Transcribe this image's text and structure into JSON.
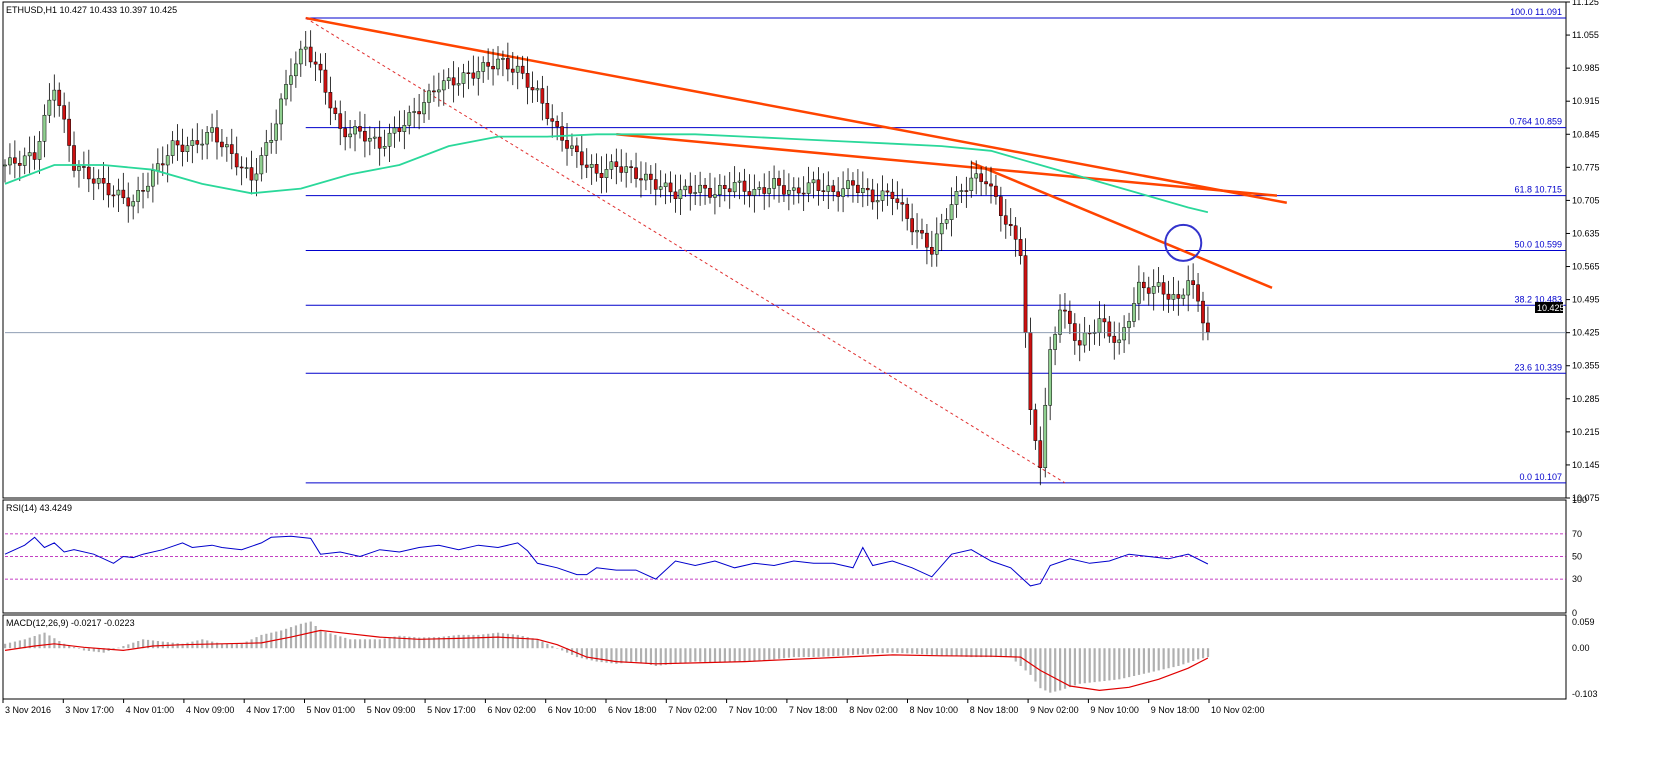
{
  "symbol_header": "ETHUSD,H1  10.427 10.433 10.397 10.425",
  "current_price": "10.425",
  "colors": {
    "bull": "#8fcf8f",
    "bear": "#cc1111",
    "ma": "#2ad89a",
    "trendline": "#ff4400",
    "fib": "#0000cc",
    "rsi": "#0000cc",
    "macd_signal": "#e00000",
    "macd_hist": "#b0b0b0",
    "highlight": "#3333cc"
  },
  "chart_data": {
    "type": "candlestick",
    "price_axis": {
      "range": [
        10.075,
        11.125
      ],
      "ticks": [
        "11.125",
        "11.055",
        "10.985",
        "10.915",
        "10.845",
        "10.775",
        "10.705",
        "10.635",
        "10.565",
        "10.495",
        "10.425",
        "10.355",
        "10.285",
        "10.215",
        "10.145",
        "10.075"
      ]
    },
    "time_axis": {
      "labels": [
        "3 Nov 2016",
        "3 Nov 17:00",
        "4 Nov 01:00",
        "4 Nov 09:00",
        "4 Nov 17:00",
        "5 Nov 01:00",
        "5 Nov 09:00",
        "5 Nov 17:00",
        "6 Nov 02:00",
        "6 Nov 10:00",
        "6 Nov 18:00",
        "7 Nov 02:00",
        "7 Nov 10:00",
        "7 Nov 18:00",
        "8 Nov 02:00",
        "8 Nov 10:00",
        "8 Nov 18:00",
        "9 Nov 02:00",
        "9 Nov 10:00",
        "9 Nov 18:00",
        "10 Nov 02:00"
      ]
    },
    "fibonacci": [
      {
        "label": "100.0",
        "value": 11.091
      },
      {
        "label": "0.764",
        "value": 10.859
      },
      {
        "label": "61.8",
        "value": 10.715
      },
      {
        "label": "50.0",
        "value": 10.599
      },
      {
        "label": "38.2",
        "value": 10.483
      },
      {
        "label": "23.6",
        "value": 10.339
      },
      {
        "label": "0.0",
        "value": 10.107
      }
    ],
    "close_path": [
      [
        0,
        10.78
      ],
      [
        6,
        10.8
      ],
      [
        10,
        10.95
      ],
      [
        14,
        10.78
      ],
      [
        18,
        10.75
      ],
      [
        22,
        10.72
      ],
      [
        26,
        10.7
      ],
      [
        30,
        10.76
      ],
      [
        34,
        10.82
      ],
      [
        38,
        10.82
      ],
      [
        42,
        10.85
      ],
      [
        46,
        10.8
      ],
      [
        50,
        10.75
      ],
      [
        54,
        10.84
      ],
      [
        58,
        10.98
      ],
      [
        61,
        11.03
      ],
      [
        64,
        10.97
      ],
      [
        68,
        10.85
      ],
      [
        72,
        10.85
      ],
      [
        76,
        10.82
      ],
      [
        80,
        10.86
      ],
      [
        84,
        10.9
      ],
      [
        88,
        10.95
      ],
      [
        92,
        10.96
      ],
      [
        96,
        10.98
      ],
      [
        100,
        11.0
      ],
      [
        104,
        10.98
      ],
      [
        108,
        10.93
      ],
      [
        112,
        10.85
      ],
      [
        116,
        10.8
      ],
      [
        120,
        10.76
      ],
      [
        124,
        10.78
      ],
      [
        128,
        10.76
      ],
      [
        132,
        10.74
      ],
      [
        136,
        10.72
      ],
      [
        140,
        10.73
      ],
      [
        144,
        10.72
      ],
      [
        148,
        10.74
      ],
      [
        152,
        10.72
      ],
      [
        156,
        10.74
      ],
      [
        160,
        10.72
      ],
      [
        164,
        10.74
      ],
      [
        168,
        10.72
      ],
      [
        172,
        10.74
      ],
      [
        176,
        10.71
      ],
      [
        180,
        10.72
      ],
      [
        184,
        10.65
      ],
      [
        188,
        10.6
      ],
      [
        192,
        10.7
      ],
      [
        196,
        10.75
      ],
      [
        199,
        10.75
      ],
      [
        203,
        10.66
      ],
      [
        206,
        10.6
      ],
      [
        208,
        10.25
      ],
      [
        210,
        10.15
      ],
      [
        212,
        10.38
      ],
      [
        214,
        10.48
      ],
      [
        218,
        10.4
      ],
      [
        222,
        10.45
      ],
      [
        226,
        10.4
      ],
      [
        230,
        10.52
      ],
      [
        234,
        10.52
      ],
      [
        238,
        10.49
      ],
      [
        240,
        10.54
      ],
      [
        242,
        10.49
      ],
      [
        244,
        10.425
      ]
    ],
    "candles": {
      "count": 245,
      "extra_bars": 22
    },
    "moving_average": [
      [
        0,
        10.74
      ],
      [
        10,
        10.78
      ],
      [
        20,
        10.78
      ],
      [
        30,
        10.77
      ],
      [
        40,
        10.74
      ],
      [
        50,
        10.72
      ],
      [
        60,
        10.73
      ],
      [
        70,
        10.76
      ],
      [
        80,
        10.78
      ],
      [
        90,
        10.82
      ],
      [
        100,
        10.84
      ],
      [
        110,
        10.84
      ],
      [
        120,
        10.845
      ],
      [
        130,
        10.845
      ],
      [
        140,
        10.845
      ],
      [
        150,
        10.84
      ],
      [
        160,
        10.835
      ],
      [
        170,
        10.83
      ],
      [
        180,
        10.825
      ],
      [
        190,
        10.82
      ],
      [
        200,
        10.81
      ],
      [
        210,
        10.78
      ],
      [
        220,
        10.75
      ],
      [
        230,
        10.72
      ],
      [
        240,
        10.69
      ],
      [
        244,
        10.68
      ]
    ],
    "trendlines": [
      {
        "from": [
          61,
          11.091
        ],
        "to": [
          260,
          10.7
        ]
      },
      {
        "from": [
          124,
          10.845
        ],
        "to": [
          258,
          10.715
        ]
      },
      {
        "from": [
          196,
          10.785
        ],
        "to": [
          257,
          10.52
        ]
      },
      {
        "from": [
          61,
          11.091
        ],
        "to": [
          215,
          10.107
        ],
        "style": "dashed"
      }
    ],
    "highlight_circle": [
      239,
      10.615
    ],
    "rsi": {
      "label": "RSI(14) 43.4249",
      "levels": [
        70,
        50,
        30
      ],
      "axis_ticks": [
        "100",
        "70",
        "50",
        "30",
        "0"
      ],
      "series": [
        [
          0,
          52
        ],
        [
          4,
          60
        ],
        [
          6,
          67
        ],
        [
          8,
          58
        ],
        [
          10,
          62
        ],
        [
          12,
          54
        ],
        [
          14,
          56
        ],
        [
          18,
          52
        ],
        [
          22,
          44
        ],
        [
          24,
          50
        ],
        [
          26,
          49
        ],
        [
          28,
          52
        ],
        [
          32,
          56
        ],
        [
          34,
          59
        ],
        [
          36,
          62
        ],
        [
          38,
          58
        ],
        [
          42,
          60
        ],
        [
          44,
          58
        ],
        [
          48,
          56
        ],
        [
          52,
          62
        ],
        [
          54,
          67
        ],
        [
          58,
          68
        ],
        [
          62,
          66
        ],
        [
          64,
          52
        ],
        [
          68,
          54
        ],
        [
          72,
          50
        ],
        [
          76,
          56
        ],
        [
          80,
          54
        ],
        [
          84,
          58
        ],
        [
          88,
          60
        ],
        [
          92,
          56
        ],
        [
          96,
          60
        ],
        [
          100,
          58
        ],
        [
          104,
          62
        ],
        [
          106,
          55
        ],
        [
          108,
          44
        ],
        [
          112,
          40
        ],
        [
          116,
          34
        ],
        [
          118,
          34
        ],
        [
          120,
          40
        ],
        [
          124,
          38
        ],
        [
          128,
          38
        ],
        [
          132,
          30
        ],
        [
          136,
          46
        ],
        [
          140,
          42
        ],
        [
          144,
          46
        ],
        [
          148,
          40
        ],
        [
          152,
          44
        ],
        [
          156,
          42
        ],
        [
          160,
          46
        ],
        [
          164,
          44
        ],
        [
          168,
          44
        ],
        [
          172,
          40
        ],
        [
          174,
          58
        ],
        [
          176,
          42
        ],
        [
          180,
          46
        ],
        [
          184,
          40
        ],
        [
          188,
          32
        ],
        [
          192,
          52
        ],
        [
          196,
          56
        ],
        [
          200,
          46
        ],
        [
          204,
          40
        ],
        [
          208,
          24
        ],
        [
          210,
          26
        ],
        [
          212,
          42
        ],
        [
          216,
          48
        ],
        [
          220,
          44
        ],
        [
          224,
          46
        ],
        [
          228,
          52
        ],
        [
          232,
          50
        ],
        [
          236,
          48
        ],
        [
          240,
          52
        ],
        [
          244,
          43.4
        ]
      ]
    },
    "macd": {
      "label": "MACD(12,26,9) -0.0217 -0.0223",
      "axis_ticks": [
        "0.059",
        "0.00",
        "-0.103"
      ],
      "signal": [
        [
          0,
          -0.005
        ],
        [
          6,
          0.005
        ],
        [
          10,
          0.01
        ],
        [
          16,
          0.002
        ],
        [
          24,
          -0.005
        ],
        [
          30,
          0.005
        ],
        [
          36,
          0.008
        ],
        [
          44,
          0.01
        ],
        [
          52,
          0.012
        ],
        [
          58,
          0.025
        ],
        [
          64,
          0.04
        ],
        [
          68,
          0.035
        ],
        [
          76,
          0.025
        ],
        [
          84,
          0.02
        ],
        [
          92,
          0.022
        ],
        [
          100,
          0.025
        ],
        [
          108,
          0.02
        ],
        [
          112,
          0.008
        ],
        [
          118,
          -0.02
        ],
        [
          124,
          -0.03
        ],
        [
          132,
          -0.035
        ],
        [
          140,
          -0.033
        ],
        [
          150,
          -0.03
        ],
        [
          160,
          -0.025
        ],
        [
          170,
          -0.02
        ],
        [
          180,
          -0.015
        ],
        [
          190,
          -0.017
        ],
        [
          200,
          -0.018
        ],
        [
          206,
          -0.02
        ],
        [
          210,
          -0.05
        ],
        [
          216,
          -0.085
        ],
        [
          222,
          -0.095
        ],
        [
          228,
          -0.088
        ],
        [
          234,
          -0.07
        ],
        [
          240,
          -0.045
        ],
        [
          244,
          -0.022
        ]
      ],
      "histogram": [
        [
          0,
          0.01
        ],
        [
          4,
          0.02
        ],
        [
          8,
          0.035
        ],
        [
          12,
          0.01
        ],
        [
          16,
          -0.005
        ],
        [
          20,
          -0.01
        ],
        [
          24,
          0.005
        ],
        [
          28,
          0.02
        ],
        [
          32,
          0.015
        ],
        [
          36,
          0.01
        ],
        [
          40,
          0.02
        ],
        [
          44,
          0.01
        ],
        [
          48,
          0.01
        ],
        [
          52,
          0.03
        ],
        [
          56,
          0.04
        ],
        [
          60,
          0.055
        ],
        [
          62,
          0.06
        ],
        [
          64,
          0.04
        ],
        [
          70,
          0.02
        ],
        [
          76,
          0.02
        ],
        [
          80,
          0.028
        ],
        [
          84,
          0.024
        ],
        [
          88,
          0.025
        ],
        [
          92,
          0.03
        ],
        [
          96,
          0.03
        ],
        [
          100,
          0.035
        ],
        [
          104,
          0.03
        ],
        [
          108,
          0.02
        ],
        [
          112,
          0.0
        ],
        [
          116,
          -0.02
        ],
        [
          120,
          -0.03
        ],
        [
          124,
          -0.035
        ],
        [
          128,
          -0.03
        ],
        [
          132,
          -0.04
        ],
        [
          136,
          -0.035
        ],
        [
          140,
          -0.03
        ],
        [
          144,
          -0.032
        ],
        [
          148,
          -0.03
        ],
        [
          152,
          -0.028
        ],
        [
          156,
          -0.025
        ],
        [
          160,
          -0.02
        ],
        [
          164,
          -0.02
        ],
        [
          168,
          -0.018
        ],
        [
          172,
          -0.015
        ],
        [
          176,
          -0.012
        ],
        [
          180,
          -0.01
        ],
        [
          184,
          -0.012
        ],
        [
          188,
          -0.015
        ],
        [
          192,
          -0.018
        ],
        [
          196,
          -0.02
        ],
        [
          200,
          -0.02
        ],
        [
          204,
          -0.02
        ],
        [
          208,
          -0.06
        ],
        [
          210,
          -0.09
        ],
        [
          212,
          -0.1
        ],
        [
          214,
          -0.095
        ],
        [
          218,
          -0.08
        ],
        [
          222,
          -0.075
        ],
        [
          226,
          -0.07
        ],
        [
          230,
          -0.06
        ],
        [
          234,
          -0.05
        ],
        [
          238,
          -0.04
        ],
        [
          242,
          -0.025
        ],
        [
          244,
          -0.02
        ]
      ]
    }
  }
}
